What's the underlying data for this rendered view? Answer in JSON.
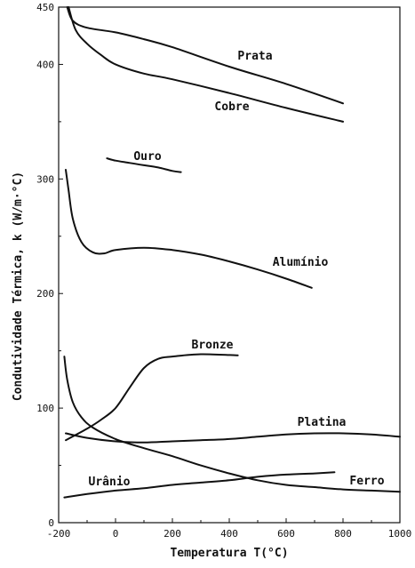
{
  "chart_data": {
    "type": "line",
    "title": "",
    "xlabel": "Temperatura  T(°C)",
    "ylabel": "Condutividade Térmica, k (W/m·°C)",
    "xlim": [
      -200,
      1000
    ],
    "ylim": [
      0,
      450
    ],
    "x_ticks": [
      -200,
      0,
      200,
      400,
      600,
      800,
      1000
    ],
    "y_ticks": [
      0,
      100,
      200,
      300,
      400,
      450
    ],
    "grid": false,
    "line_color": "#111111",
    "series": [
      {
        "name": "Prata",
        "x": [
          -170,
          -150,
          -100,
          0,
          100,
          200,
          400,
          600,
          800
        ],
        "y": [
          450,
          438,
          432,
          428,
          422,
          415,
          398,
          383,
          366
        ]
      },
      {
        "name": "Cobre",
        "x": [
          -165,
          -140,
          -100,
          -50,
          0,
          100,
          200,
          400,
          600,
          800
        ],
        "y": [
          450,
          430,
          418,
          408,
          400,
          392,
          387,
          375,
          362,
          350
        ]
      },
      {
        "name": "Ouro",
        "x": [
          -30,
          0,
          50,
          100,
          150,
          200,
          230
        ],
        "y": [
          318,
          316,
          314,
          312,
          310,
          307,
          306
        ]
      },
      {
        "name": "Alumínio",
        "x": [
          -175,
          -165,
          -150,
          -120,
          -80,
          -40,
          0,
          100,
          200,
          300,
          400,
          500,
          600,
          690
        ],
        "y": [
          308,
          290,
          265,
          245,
          236,
          235,
          238,
          240,
          238,
          234,
          228,
          221,
          213,
          205
        ]
      },
      {
        "name": "Bronze",
        "x": [
          -175,
          -100,
          -50,
          0,
          50,
          100,
          150,
          200,
          300,
          430
        ],
        "y": [
          72,
          82,
          90,
          100,
          118,
          135,
          143,
          145,
          147,
          146
        ]
      },
      {
        "name": "Platina",
        "x": [
          -175,
          -100,
          0,
          100,
          200,
          300,
          400,
          500,
          600,
          700,
          800,
          900,
          1000
        ],
        "y": [
          78,
          74,
          71,
          70,
          71,
          72,
          73,
          75,
          77,
          78,
          78,
          77,
          75
        ]
      },
      {
        "name": "Ferro",
        "x": [
          -180,
          -170,
          -150,
          -120,
          -80,
          0,
          100,
          200,
          300,
          400,
          500,
          600,
          700,
          800,
          900,
          1000
        ],
        "y": [
          145,
          125,
          105,
          92,
          83,
          73,
          65,
          58,
          50,
          43,
          37,
          33,
          31,
          29,
          28,
          27
        ]
      },
      {
        "name": "Urânio",
        "x": [
          -180,
          -100,
          0,
          100,
          200,
          300,
          400,
          500,
          600,
          700,
          770
        ],
        "y": [
          22,
          25,
          28,
          30,
          33,
          35,
          37,
          40,
          42,
          43,
          44
        ]
      }
    ]
  }
}
